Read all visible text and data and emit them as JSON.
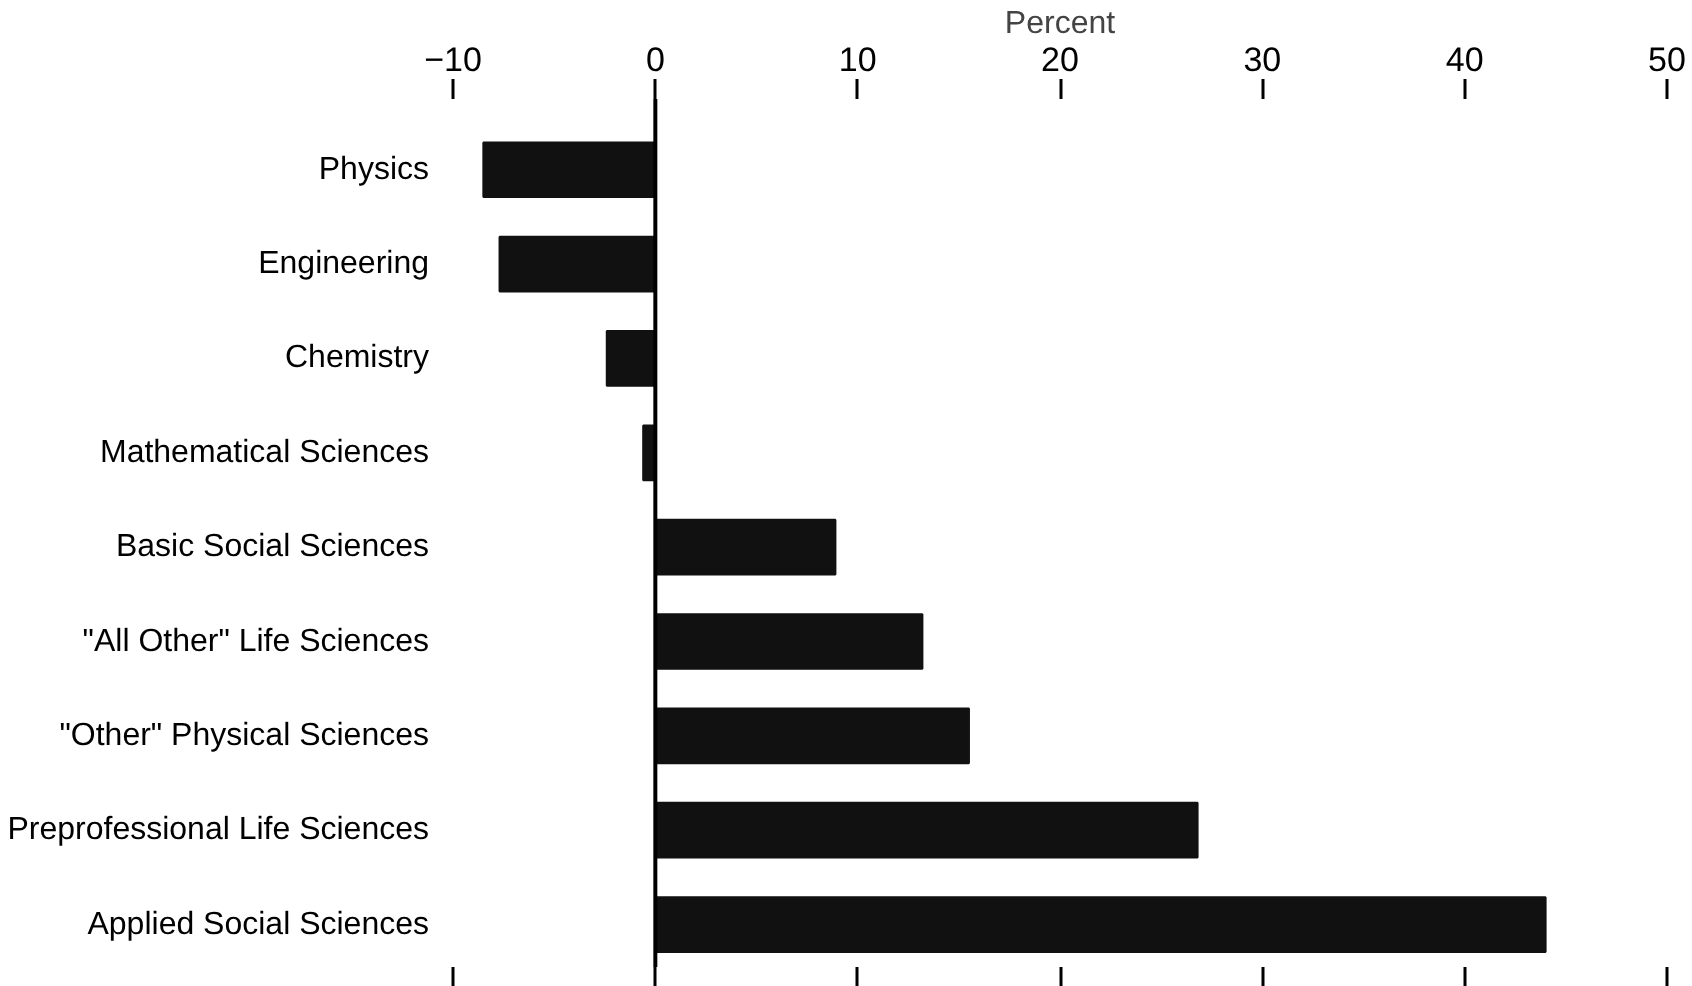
{
  "chart_data": {
    "type": "bar",
    "orientation": "horizontal",
    "xlabel": "Percent",
    "categories": [
      "Physics",
      "Engineering",
      "Chemistry",
      "Mathematical Sciences",
      "Basic Social Sciences",
      "\"All Other\" Life Sciences",
      "\"Other\" Physical Sciences",
      "Preprofessional Life Sciences",
      "Applied Social Sciences"
    ],
    "values": [
      -8.5,
      -7.7,
      -2.4,
      -0.6,
      8.9,
      13.2,
      15.5,
      26.8,
      44.0
    ],
    "color": "#111111",
    "xlim": [
      -10,
      50
    ],
    "xticks": [
      -10,
      0,
      10,
      20,
      30,
      40,
      50
    ],
    "ref_lines": [
      {
        "axis": "x",
        "value": 0,
        "color": "#000000"
      }
    ]
  }
}
